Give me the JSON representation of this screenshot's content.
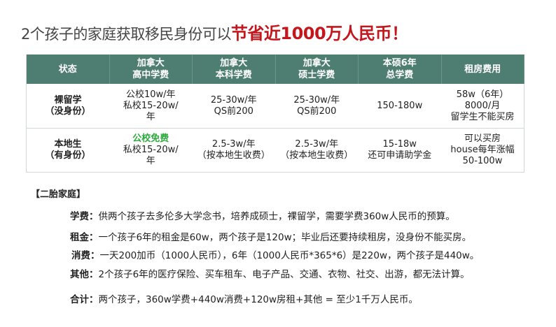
{
  "title": {
    "prefix": "2个孩子的家庭获取移民身份可以",
    "highlight": "节省近1000万人民币！"
  },
  "colors": {
    "header_bg": "#4e7d72",
    "highlight": "#c4161c",
    "free_text": "#2bab3c"
  },
  "table": {
    "headers": [
      [
        "状态"
      ],
      [
        "加拿大",
        "高中学费"
      ],
      [
        "加拿大",
        "本科学费"
      ],
      [
        "加拿大",
        "硕士学费"
      ],
      [
        "本硕6年",
        "总学费"
      ],
      [
        "租房费用"
      ]
    ],
    "rows": [
      [
        [
          "裸留学",
          "（没身份）"
        ],
        [
          "公校10w/年",
          "私校15-20w/",
          "年"
        ],
        [
          "25-30w/年",
          "QS前200"
        ],
        [
          "25-30w/年",
          "QS前200"
        ],
        [
          "150-180w"
        ],
        [
          "58w（6年）",
          "8000/月",
          "留学生不能买房"
        ]
      ],
      [
        [
          "本地生",
          "（有身份）"
        ],
        [
          "公校免费",
          "私校15-20w/",
          "年"
        ],
        [
          "2.5-3w/年",
          "（按本地生收费）"
        ],
        [
          "2.5-3w/年",
          "（按本地生收费）"
        ],
        [
          "15-18w",
          "还可申请助学金"
        ],
        [
          "可以买房",
          "house每年涨幅",
          "50-100w"
        ]
      ]
    ]
  },
  "section": {
    "heading": "【二胎家庭】",
    "items": [
      {
        "label": "学费：",
        "text": "供两个孩子去多伦多大学念书，培养成硕士，裸留学，需要学费360w人民币的预算。"
      },
      {
        "label": "租金：",
        "text": "一个孩子6年的租金是60w，两个孩子是120w；毕业后还要持续租房，没身份不能买房。"
      },
      {
        "label": "消费：",
        "text": "一天200加币（1000人民币），6年（1000人民币*365*6）是220w，两个孩子是440w。"
      },
      {
        "label": "其他：",
        "text": "2个孩子6年的医疗保险、买车租车、电子产品、交通、衣物、社交、出游，都无法计算。"
      },
      {
        "label": "合计：",
        "text": "两个孩子，360w学费+440w消费+120w房租+其他 = 至少1千万人民币。"
      }
    ]
  }
}
